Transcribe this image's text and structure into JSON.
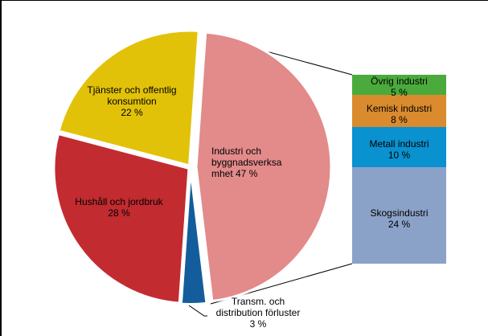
{
  "chart_data": {
    "type": "pie",
    "subtype": "pie-of-bar",
    "title": "",
    "main_pie": {
      "slices": [
        {
          "name": "Industri och byggnadsverksamhet",
          "label_lines": [
            "Industri och",
            "byggnadsverksa",
            "mhet 47 %"
          ],
          "value": 47,
          "color": "#E38A8A",
          "exploded": true
        },
        {
          "name": "Transm. och distribution förluster",
          "label_lines": [
            "Transm. och",
            "distribution förluster",
            "3 %"
          ],
          "value": 3,
          "color": "#135D9C"
        },
        {
          "name": "Hushåll och jordbruk",
          "label_lines": [
            "Hushåll och jordbruk",
            "28 %"
          ],
          "value": 28,
          "color": "#C22B30"
        },
        {
          "name": "Tjänster och offentlig konsumtion",
          "label_lines": [
            "Tjänster och offentlig",
            "konsumtion",
            "22 %"
          ],
          "value": 22,
          "color": "#E2C209"
        }
      ]
    },
    "breakdown_bar": {
      "of": "Industri och byggnadsverksamhet",
      "segments": [
        {
          "name": "Övrig industri",
          "value": 5,
          "label": "5 %",
          "color": "#4AAA3C"
        },
        {
          "name": "Kemisk industri",
          "value": 8,
          "label": "8 %",
          "color": "#D98B2E"
        },
        {
          "name": "Metall industri",
          "value": 10,
          "label": "10 %",
          "color": "#0A91CF"
        },
        {
          "name": "Skogsindustri",
          "value": 24,
          "label": "24 %",
          "color": "#8BA2C8"
        }
      ]
    },
    "legend": null,
    "unit": "%"
  }
}
